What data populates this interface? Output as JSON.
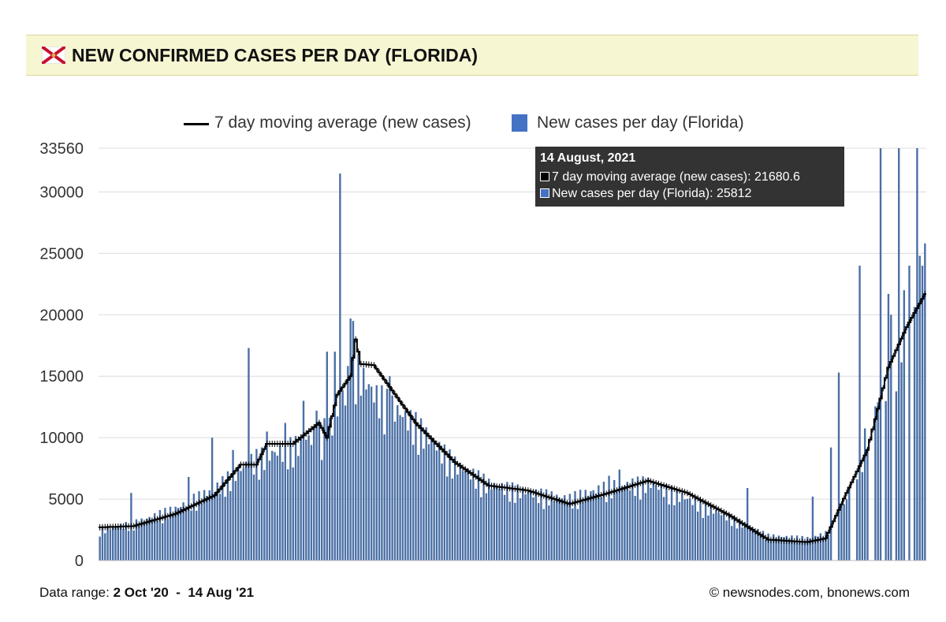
{
  "header": {
    "title": "NEW CONFIRMED CASES PER DAY (FLORIDA)",
    "flag_icon": "florida-flag-icon"
  },
  "legend": {
    "average_label": "7 day moving average (new cases)",
    "daily_label": "New cases per day (Florida)"
  },
  "tooltip": {
    "date": "14 August, 2021",
    "average_text": "7 day moving average (new cases): 21680.6",
    "daily_text": "New cases per day (Florida): 25812"
  },
  "footer": {
    "range_label": "Data range:",
    "range_value": "2 Oct '20  -  14 Aug '21",
    "credit": "© newsnodes.com, bnonews.com"
  },
  "colors": {
    "bar": "#4a6fa5",
    "average_line": "#000000",
    "grid": "#dcdcdc",
    "title_bg": "#f7f6d2"
  },
  "chart_data": {
    "type": "bar",
    "title": "NEW CONFIRMED CASES PER DAY (FLORIDA)",
    "x_start": "2020-10-02",
    "x_end": "2021-08-14",
    "ylim": [
      0,
      33560
    ],
    "y_ticks": [
      0,
      5000,
      10000,
      15000,
      20000,
      25000,
      30000,
      33560
    ],
    "grid": true,
    "legend_position": "top",
    "series": [
      {
        "name": "New cases per day (Florida)",
        "kind": "bar",
        "anchors": [
          [
            "2020-10-02",
            2500
          ],
          [
            "2020-10-15",
            3000
          ],
          [
            "2020-10-31",
            4200
          ],
          [
            "2020-11-15",
            5800
          ],
          [
            "2020-11-30",
            8200
          ],
          [
            "2020-12-15",
            9200
          ],
          [
            "2020-12-31",
            11000
          ],
          [
            "2021-01-07",
            16000
          ],
          [
            "2021-01-15",
            13500
          ],
          [
            "2021-01-31",
            11000
          ],
          [
            "2021-02-15",
            7800
          ],
          [
            "2021-02-28",
            6200
          ],
          [
            "2021-03-15",
            5500
          ],
          [
            "2021-03-31",
            5000
          ],
          [
            "2021-04-15",
            6000
          ],
          [
            "2021-04-30",
            6300
          ],
          [
            "2021-05-15",
            5000
          ],
          [
            "2021-05-31",
            3500
          ],
          [
            "2021-06-15",
            2000
          ],
          [
            "2021-06-30",
            1800
          ],
          [
            "2021-07-07",
            2200
          ],
          [
            "2021-07-15",
            5000
          ],
          [
            "2021-07-23",
            10500
          ],
          [
            "2021-07-31",
            15000
          ],
          [
            "2021-08-07",
            19000
          ],
          [
            "2021-08-14",
            25812
          ]
        ],
        "spikes": [
          [
            "2020-10-14",
            5500
          ],
          [
            "2020-11-05",
            6800
          ],
          [
            "2020-11-14",
            10000
          ],
          [
            "2020-11-22",
            9000
          ],
          [
            "2020-11-28",
            17300
          ],
          [
            "2020-12-05",
            10500
          ],
          [
            "2020-12-12",
            11200
          ],
          [
            "2020-12-19",
            13000
          ],
          [
            "2020-12-24",
            12200
          ],
          [
            "2020-12-28",
            17000
          ],
          [
            "2020-12-31",
            17000
          ],
          [
            "2021-01-02",
            31500
          ],
          [
            "2021-01-06",
            19700
          ],
          [
            "2021-01-07",
            19500
          ],
          [
            "2021-01-21",
            15000
          ],
          [
            "2021-04-15",
            6900
          ],
          [
            "2021-04-19",
            7400
          ],
          [
            "2021-06-07",
            5900
          ],
          [
            "2021-07-02",
            5200
          ],
          [
            "2021-07-09",
            9200
          ],
          [
            "2021-07-12",
            15300
          ],
          [
            "2021-07-20",
            24000
          ],
          [
            "2021-07-28",
            33560
          ],
          [
            "2021-07-31",
            21700
          ],
          [
            "2021-08-01",
            20000
          ],
          [
            "2021-08-04",
            33560
          ],
          [
            "2021-08-06",
            22000
          ],
          [
            "2021-08-08",
            24000
          ],
          [
            "2021-08-11",
            33560
          ],
          [
            "2021-08-12",
            24800
          ],
          [
            "2021-08-13",
            24000
          ],
          [
            "2021-08-14",
            25812
          ]
        ],
        "zeros": [
          "2021-07-10",
          "2021-07-11",
          "2021-07-17",
          "2021-07-18",
          "2021-07-24",
          "2021-07-25",
          "2021-07-29",
          "2021-08-02",
          "2021-08-07",
          "2021-08-09"
        ]
      },
      {
        "name": "7 day moving average (new cases)",
        "kind": "line",
        "anchors": [
          [
            "2020-10-02",
            2700
          ],
          [
            "2020-10-15",
            2800
          ],
          [
            "2020-10-31",
            3800
          ],
          [
            "2020-11-15",
            5300
          ],
          [
            "2020-11-25",
            7800
          ],
          [
            "2020-12-01",
            7800
          ],
          [
            "2020-12-05",
            9500
          ],
          [
            "2020-12-15",
            9500
          ],
          [
            "2020-12-25",
            11200
          ],
          [
            "2020-12-28",
            10000
          ],
          [
            "2021-01-01",
            13500
          ],
          [
            "2021-01-06",
            15000
          ],
          [
            "2021-01-08",
            18000
          ],
          [
            "2021-01-10",
            16000
          ],
          [
            "2021-01-15",
            15900
          ],
          [
            "2021-01-31",
            11200
          ],
          [
            "2021-02-15",
            8000
          ],
          [
            "2021-02-28",
            6100
          ],
          [
            "2021-03-15",
            5700
          ],
          [
            "2021-03-31",
            4600
          ],
          [
            "2021-04-15",
            5500
          ],
          [
            "2021-04-30",
            6500
          ],
          [
            "2021-05-15",
            5500
          ],
          [
            "2021-05-31",
            3700
          ],
          [
            "2021-06-15",
            1700
          ],
          [
            "2021-06-30",
            1500
          ],
          [
            "2021-07-07",
            1800
          ],
          [
            "2021-07-15",
            5500
          ],
          [
            "2021-07-23",
            9000
          ],
          [
            "2021-07-31",
            15700
          ],
          [
            "2021-08-07",
            19000
          ],
          [
            "2021-08-14",
            21680.6
          ]
        ]
      }
    ]
  }
}
